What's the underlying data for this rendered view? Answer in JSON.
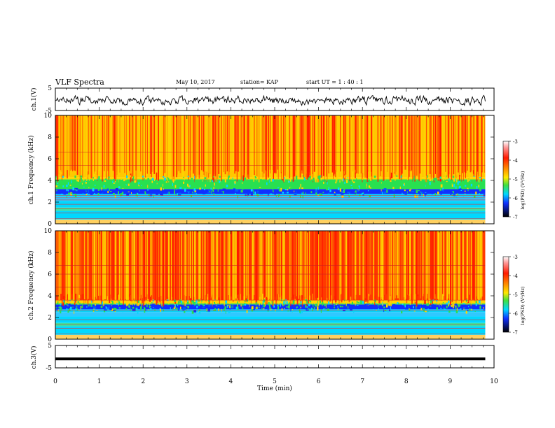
{
  "header": {
    "title": "VLF Spectra",
    "date": "May 10, 2017",
    "station": "station= KAP",
    "start": "start  UT  =   1  : 40 : 1"
  },
  "colorscale": {
    "label": "log(PSD) (V²/Hz)",
    "ticks": [
      "-3",
      "-4",
      "-5",
      "-6",
      "-7"
    ],
    "values": [
      -3,
      -4,
      -5,
      -6,
      -7
    ]
  },
  "colors": {
    "red": "#ff1a00",
    "yellow": "#ffd400",
    "green": "#28e050",
    "cyan": "#00d8ff",
    "blue": "#1030ff"
  },
  "chart_data": [
    {
      "type": "line",
      "panel": "ch1",
      "ylabel": "ch.1(V)",
      "ylim": [
        -5,
        5
      ],
      "yticks": [
        "5",
        "-5"
      ],
      "xlim": [
        0,
        10
      ],
      "description_series": "noisy waveform oscillating around 0 V with amplitude ~ ±3 V",
      "x": [
        0,
        1,
        2,
        3,
        4,
        5,
        6,
        7,
        8,
        9,
        9.8
      ],
      "y": [
        0.5,
        -0.8,
        0.3,
        -1.2,
        0.8,
        -0.5,
        0.9,
        -0.3,
        0.6,
        -0.7,
        0.2
      ]
    },
    {
      "type": "heatmap",
      "panel": "ch1-spectrogram",
      "ylabel": "ch.1 Frequency (kHz)",
      "ylim": [
        0,
        10
      ],
      "yticks": [
        "0",
        "2",
        "4",
        "6",
        "8",
        "10"
      ],
      "xlim": [
        0,
        10
      ],
      "zlim": [
        -7,
        -3
      ],
      "bands": [
        {
          "f_range": [
            0,
            2.7
          ],
          "level": "low (cyan/blue)"
        },
        {
          "f_range": [
            2.7,
            4.2
          ],
          "level": "medium (green)"
        },
        {
          "f_range": [
            4.2,
            10
          ],
          "level": "high (yellow/red)"
        }
      ]
    },
    {
      "type": "heatmap",
      "panel": "ch2-spectrogram",
      "ylabel": "ch.2 Frequency (kHz)",
      "ylim": [
        0,
        10
      ],
      "yticks": [
        "0",
        "2",
        "4",
        "6",
        "8",
        "10"
      ],
      "xlim": [
        0,
        10
      ],
      "zlim": [
        -7,
        -3
      ],
      "bands": [
        {
          "f_range": [
            0,
            2.7
          ],
          "level": "low (cyan/blue)"
        },
        {
          "f_range": [
            2.7,
            3.5
          ],
          "level": "medium (green)"
        },
        {
          "f_range": [
            3.5,
            10
          ],
          "level": "high (red)"
        }
      ]
    },
    {
      "type": "line",
      "panel": "ch3",
      "ylabel": "ch.3(V)",
      "ylim": [
        -5,
        5
      ],
      "yticks": [
        "5",
        "-5"
      ],
      "xlim": [
        0,
        10
      ],
      "x": [
        0,
        9.8
      ],
      "y": [
        -1,
        -1
      ]
    }
  ],
  "xaxis": {
    "label": "Time (min)",
    "ticks": [
      "0",
      "1",
      "2",
      "3",
      "4",
      "5",
      "6",
      "7",
      "8",
      "9",
      "10"
    ],
    "values": [
      0,
      1,
      2,
      3,
      4,
      5,
      6,
      7,
      8,
      9,
      10
    ]
  }
}
